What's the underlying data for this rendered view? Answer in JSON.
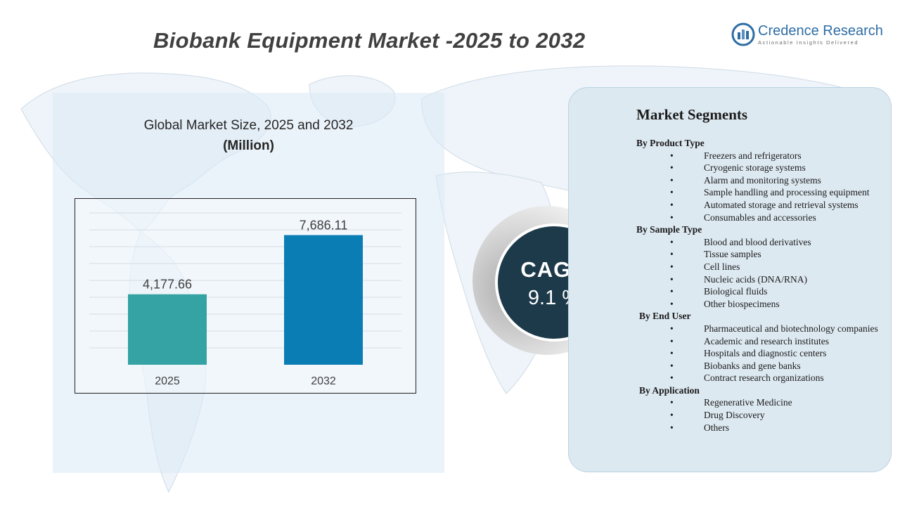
{
  "title": "Biobank Equipment Market -2025 to 2032",
  "logo": {
    "name": "Credence Research",
    "tagline": "Actionable Insights Delivered",
    "brand_color": "#2e6da4"
  },
  "chart_panel": {
    "title": "Global Market Size, 2025 and 2032",
    "subtitle": "(Million)"
  },
  "chart_data": {
    "type": "bar",
    "categories": [
      "2025",
      "2032"
    ],
    "values": [
      4177.66,
      7686.11
    ],
    "data_labels": [
      "4,177.66",
      "7,686.11"
    ],
    "colors": [
      "#35a3a3",
      "#0a7db5"
    ],
    "ylim": [
      0,
      9000
    ],
    "grid": true,
    "title": "Global Market Size, 2025 and 2032",
    "xlabel": "",
    "ylabel": ""
  },
  "cagr": {
    "label": "CAGR",
    "value": "9.1 %"
  },
  "segments": {
    "title": "Market Segments",
    "groups": [
      {
        "name": "By Product Type",
        "items": [
          "Freezers and refrigerators",
          "Cryogenic storage systems",
          "Alarm and monitoring  systems",
          "Sample handling  and processing equipment",
          "Automated storage and retrieval systems",
          "Consumables and accessories"
        ]
      },
      {
        "name": "By Sample Type",
        "items": [
          "Blood and blood derivatives",
          "Tissue samples",
          "Cell lines",
          "Nucleic acids (DNA/RNA)",
          "Biological  fluids",
          "Other biospecimens"
        ]
      },
      {
        "name": "By End User",
        "items": [
          "Pharmaceutical and biotechnology companies",
          "Academic and research institutes",
          "Hospitals and diagnostic centers",
          "Biobanks and gene banks",
          "Contract research organizations"
        ]
      },
      {
        "name": "By Application",
        "items": [
          "Regenerative Medicine",
          "Drug Discovery",
          "Others"
        ]
      }
    ]
  }
}
